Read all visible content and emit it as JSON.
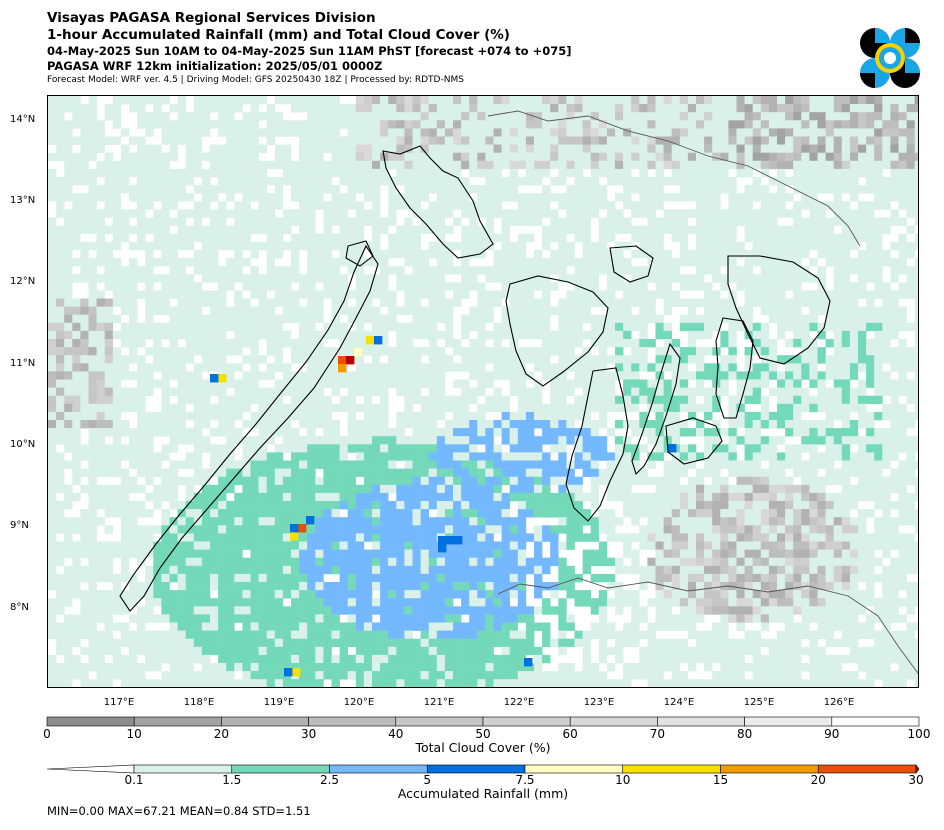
{
  "header": {
    "line1": "Visayas PAGASA Regional Services Division",
    "line2": "1-hour Accumulated Rainfall (mm) and Total Cloud Cover (%)",
    "line3": "04-May-2025 Sun 10AM to 04-May-2025 Sun 11AM PhST [forecast +074 to +075]",
    "line4": "PAGASA WRF 12km initialization: 2025/05/01 0000Z",
    "line5": "Forecast Model: WRF ver. 4.5 | Driving Model: GFS 20250430 18Z | Processed by: RDTD-NMS"
  },
  "map": {
    "lat_labels": [
      "14°N",
      "13°N",
      "12°N",
      "11°N",
      "10°N",
      "9°N",
      "8°N"
    ],
    "lon_labels": [
      "117°E",
      "118°E",
      "119°E",
      "120°E",
      "121°E",
      "122°E",
      "123°E",
      "124°E",
      "125°E",
      "126°E"
    ],
    "lat_range": [
      7.0,
      14.3
    ],
    "lon_range": [
      116.0,
      126.9
    ],
    "land_color": "#ffffff",
    "coast_color": "#000000",
    "boundary_color": "#888888"
  },
  "cloud_colorbar": {
    "title": "Total Cloud Cover (%)",
    "ticks": [
      "0",
      "10",
      "20",
      "30",
      "40",
      "50",
      "60",
      "70",
      "80",
      "90",
      "100"
    ],
    "colors": [
      "#8c8c8c",
      "#a3a3a3",
      "#b2b2b2",
      "#bdbdbd",
      "#c6c6c6",
      "#cfcfcf",
      "#d8d8d8",
      "#e2e2e2",
      "#ececec",
      "#ffffff"
    ]
  },
  "rain_colorbar": {
    "title": "Accumulated Rainfall (mm)",
    "ticks": [
      "0.1",
      "1.5",
      "2.5",
      "5",
      "7.5",
      "10",
      "15",
      "20",
      "30"
    ],
    "colors": [
      "#daf1ea",
      "#74d9b8",
      "#74b8ff",
      "#0070e0",
      "#ffffc0",
      "#f5e000",
      "#f59a00",
      "#e85000",
      "#b80000"
    ]
  },
  "stats": {
    "text": "MIN=0.00   MAX=67.21   MEAN=0.84   STD=1.51"
  },
  "logo": {
    "name": "pagasa-logo",
    "colors": [
      "#000000",
      "#1aa6e6",
      "#f5d300"
    ]
  }
}
